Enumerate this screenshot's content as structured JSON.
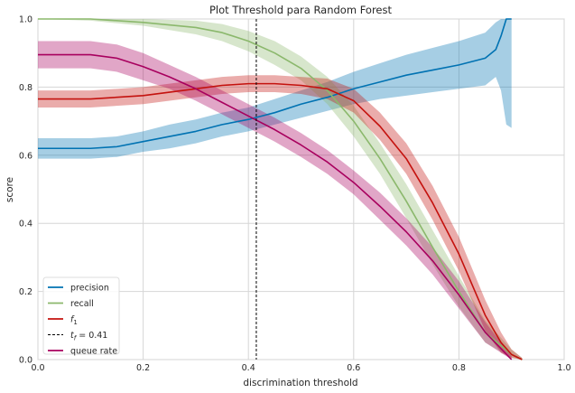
{
  "chart_data": {
    "type": "line",
    "title": "Plot Threshold para Random Forest",
    "xlabel": "discrimination threshold",
    "ylabel": "score",
    "xlim": [
      0,
      1
    ],
    "ylim": [
      0,
      1
    ],
    "xticks": [
      "0.0",
      "0.2",
      "0.4",
      "0.6",
      "0.8",
      "1.0"
    ],
    "yticks": [
      "0.0",
      "0.2",
      "0.4",
      "0.6",
      "0.8",
      "1.0"
    ],
    "grid": true,
    "legend_position": "lower-left",
    "threshold": {
      "value": 0.415,
      "label_prefix": "t",
      "label_sub": "f",
      "label_suffix": " = 0.41",
      "color": "#000000"
    },
    "series": [
      {
        "name": "precision",
        "color": "#0072B2",
        "x": [
          0.0,
          0.1,
          0.15,
          0.2,
          0.25,
          0.3,
          0.35,
          0.4,
          0.45,
          0.5,
          0.55,
          0.6,
          0.65,
          0.7,
          0.75,
          0.8,
          0.85,
          0.87,
          0.88,
          0.89,
          0.9
        ],
        "y": [
          0.62,
          0.62,
          0.625,
          0.64,
          0.655,
          0.67,
          0.69,
          0.705,
          0.725,
          0.75,
          0.77,
          0.795,
          0.815,
          0.835,
          0.85,
          0.865,
          0.885,
          0.91,
          0.95,
          1.0,
          1.0
        ],
        "band_upper": [
          0.65,
          0.65,
          0.655,
          0.67,
          0.69,
          0.705,
          0.725,
          0.74,
          0.765,
          0.79,
          0.815,
          0.845,
          0.87,
          0.895,
          0.915,
          0.935,
          0.96,
          0.99,
          1.0,
          1.0,
          1.0
        ],
        "band_lower": [
          0.59,
          0.59,
          0.595,
          0.61,
          0.62,
          0.635,
          0.655,
          0.67,
          0.69,
          0.71,
          0.73,
          0.75,
          0.765,
          0.775,
          0.785,
          0.795,
          0.805,
          0.83,
          0.79,
          0.69,
          0.68
        ]
      },
      {
        "name": "recall",
        "color": "#8BB86C",
        "x": [
          0.0,
          0.1,
          0.2,
          0.3,
          0.35,
          0.4,
          0.45,
          0.5,
          0.55,
          0.6,
          0.65,
          0.7,
          0.75,
          0.8,
          0.85,
          0.9,
          0.92
        ],
        "y": [
          1.0,
          1.0,
          0.99,
          0.975,
          0.96,
          0.935,
          0.9,
          0.855,
          0.79,
          0.7,
          0.59,
          0.465,
          0.33,
          0.2,
          0.08,
          0.015,
          0.0
        ],
        "band_upper": [
          1.0,
          1.0,
          1.0,
          0.995,
          0.985,
          0.965,
          0.935,
          0.89,
          0.83,
          0.745,
          0.635,
          0.515,
          0.38,
          0.245,
          0.115,
          0.03,
          0.005
        ],
        "band_lower": [
          1.0,
          0.995,
          0.98,
          0.955,
          0.935,
          0.905,
          0.865,
          0.82,
          0.75,
          0.655,
          0.545,
          0.415,
          0.28,
          0.155,
          0.05,
          0.005,
          0.0
        ]
      },
      {
        "name": "f",
        "name_sub": "1",
        "color": "#C4120E",
        "x": [
          0.0,
          0.1,
          0.2,
          0.25,
          0.3,
          0.35,
          0.4,
          0.45,
          0.5,
          0.55,
          0.6,
          0.65,
          0.7,
          0.75,
          0.8,
          0.85,
          0.88,
          0.9,
          0.92
        ],
        "y": [
          0.765,
          0.765,
          0.775,
          0.785,
          0.795,
          0.805,
          0.81,
          0.81,
          0.805,
          0.795,
          0.76,
          0.685,
          0.59,
          0.46,
          0.31,
          0.13,
          0.05,
          0.015,
          0.0
        ],
        "band_upper": [
          0.79,
          0.79,
          0.8,
          0.81,
          0.82,
          0.83,
          0.835,
          0.835,
          0.83,
          0.825,
          0.795,
          0.725,
          0.635,
          0.51,
          0.36,
          0.175,
          0.08,
          0.03,
          0.005
        ],
        "band_lower": [
          0.74,
          0.74,
          0.75,
          0.76,
          0.77,
          0.78,
          0.785,
          0.785,
          0.78,
          0.765,
          0.725,
          0.645,
          0.545,
          0.41,
          0.26,
          0.085,
          0.02,
          0.005,
          0.0
        ]
      },
      {
        "name": "queue rate",
        "color": "#A8005E",
        "x": [
          0.0,
          0.05,
          0.1,
          0.15,
          0.2,
          0.25,
          0.3,
          0.35,
          0.4,
          0.45,
          0.5,
          0.55,
          0.6,
          0.65,
          0.7,
          0.75,
          0.8,
          0.85,
          0.9
        ],
        "y": [
          0.895,
          0.895,
          0.895,
          0.885,
          0.86,
          0.83,
          0.795,
          0.755,
          0.715,
          0.675,
          0.63,
          0.58,
          0.52,
          0.45,
          0.375,
          0.29,
          0.19,
          0.08,
          0.0
        ],
        "band_upper": [
          0.935,
          0.935,
          0.935,
          0.925,
          0.9,
          0.865,
          0.83,
          0.79,
          0.75,
          0.71,
          0.665,
          0.615,
          0.555,
          0.49,
          0.415,
          0.33,
          0.23,
          0.11,
          0.01
        ],
        "band_lower": [
          0.855,
          0.855,
          0.855,
          0.845,
          0.82,
          0.795,
          0.76,
          0.72,
          0.68,
          0.64,
          0.595,
          0.545,
          0.485,
          0.41,
          0.335,
          0.25,
          0.15,
          0.05,
          0.0
        ]
      }
    ]
  }
}
